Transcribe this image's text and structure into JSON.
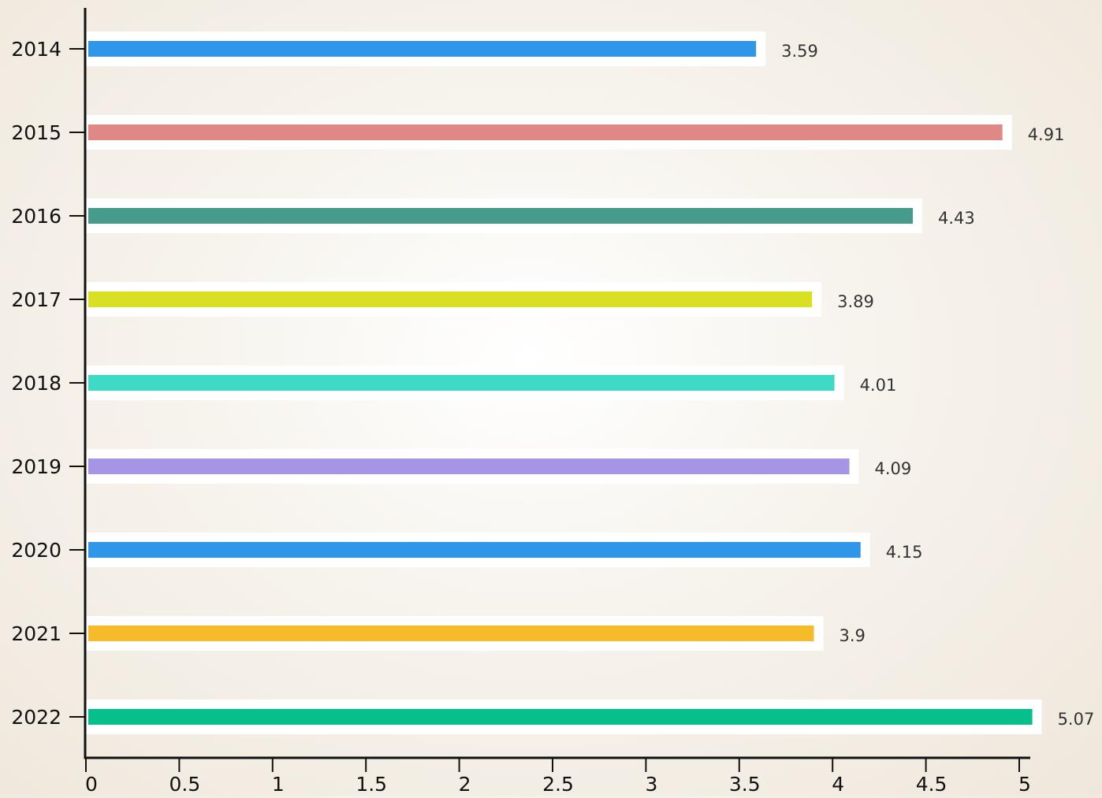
{
  "chart_data": {
    "type": "bar",
    "orientation": "horizontal",
    "title": "",
    "xlabel": "",
    "ylabel": "",
    "categories": [
      "2014",
      "2015",
      "2016",
      "2017",
      "2018",
      "2019",
      "2020",
      "2021",
      "2022"
    ],
    "values": [
      3.59,
      4.91,
      4.43,
      3.89,
      4.01,
      4.09,
      4.15,
      3.9,
      5.07
    ],
    "value_labels": [
      "3.59",
      "4.91",
      "4.43",
      "3.89",
      "4.01",
      "4.09",
      "4.15",
      "3.9",
      "5.07"
    ],
    "bar_colors": [
      "#3096ea",
      "#e08886",
      "#469b8b",
      "#d9e021",
      "#3ddbc5",
      "#a694e4",
      "#3096ea",
      "#f6bb2a",
      "#06bf8a"
    ],
    "xlim": [
      0,
      5.07
    ],
    "x_ticks": [
      "0",
      "0.5",
      "1",
      "1.5",
      "2",
      "2.5",
      "3",
      "3.5",
      "4",
      "4.5",
      "5"
    ],
    "grid": false,
    "legend": "none"
  }
}
